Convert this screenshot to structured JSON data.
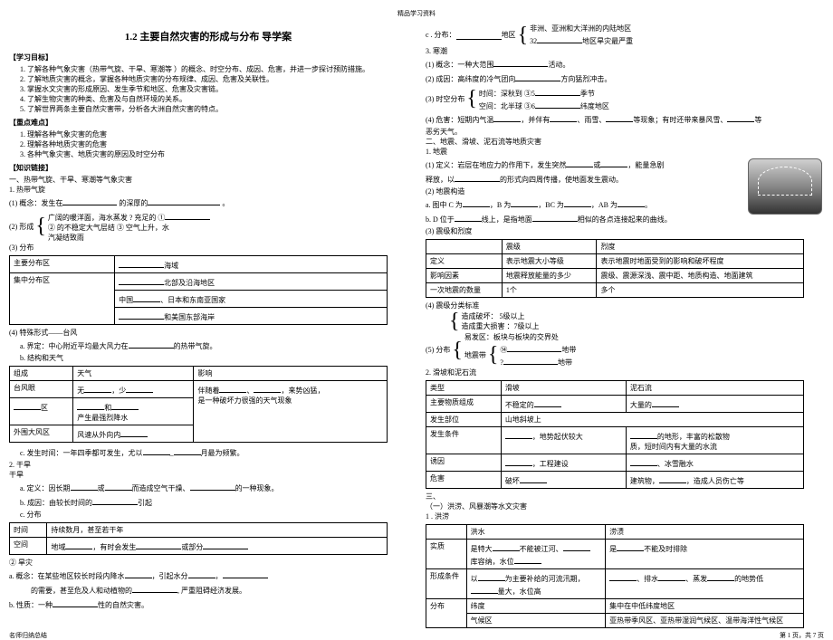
{
  "top_header": "精品学习资料",
  "title": "1.2  主要自然灾害的形成与分布    导学案",
  "left": {
    "goals_h": "【学习目标】",
    "goals": [
      "1.  了解各种气象灾害（热带气旋、干旱、寒潮等  ）的概念、时空分布、成因、危害，并进一步探讨预防措施。",
      "2.  了解地质灾害的概念，掌握各种地质灾害的分布规律、成因、危害及关联性。",
      "3.  掌握水文灾害的形成原因、发生季节和地区、危害及灾害链。",
      "4.  了解生物灾害的种类、危害及与自然环境的关系。",
      "5.  了解世界两条主要自然灾害带，分析各大洲自然灾害的特点。"
    ],
    "focus_h": "【重点难点】",
    "focus": [
      "1.  理解各种气象灾害的危害",
      "2.  理解各种地质灾害的危害",
      "3.  各种气象灾害、地质灾害的原因及时空分布"
    ],
    "link_h": "【知识链接】",
    "sec1_h": "一、热带气旋、干旱、寒潮等气象灾害",
    "sec1_1": "1.  热带气旋",
    "sec1_1_1_pre": "(1) 概念：发生在",
    "sec1_1_1_mid": "的深厚的",
    "sec1_1_1_end": "。",
    "form_pre": "(2) 形成",
    "form_a": "广阔的暖洋面，海水蒸发 ?  充足的 ①",
    "form_b": "② 的不稳定大气层结   ③ 空气上升，水",
    "form_c": "汽凝结致雨",
    "dist_pre": "(3) 分布",
    "t1_r1c1": "主要分布区",
    "t1_r1c2": "海域",
    "t1_r2c1": "",
    "t1_r2c2": "北部及沿海地区",
    "t1_r3c1": "集中分布区",
    "t1_r3c2_a": "中国",
    "t1_r3c2_b": "、日本和东南亚国家",
    "t1_r4c2": "和美国东部海岸",
    "sec1_4": "(4) 特殊形式——台风",
    "sec1_4a": "a.  界定：中心附近平均最大风力在",
    "sec1_4a2": "的热带气旋。",
    "sec1_4b": "b.  结构和天气",
    "t2_h1": "组成",
    "t2_h2": "天气",
    "t2_h3": "影响",
    "t2_r1c1": "台风眼",
    "t2_r1c2_a": "无",
    "t2_r1c2_b": "，少",
    "t2_r2c1": "",
    "t2_r2c2": "和",
    "t2_r2c3_a": "伴随着",
    "t2_r2c3_b": "、",
    "t2_r2c3_c": "，来势凶猛，",
    "t2_r3c1": "区",
    "t2_r3c2": "产生最强烈降水",
    "t2_r3c3": "是一种破坏力很强的天气现象",
    "t2_r4c1": "外围大风区",
    "t2_r4c2": "风速从外向内",
    "sec1_4c_a": "c.  发生时间：一年四季都可发生，尤以",
    "sec1_4c_b": "月最为频繁。",
    "sec1_2": "2.  干旱",
    "ganhan": "干旱",
    "ghdef_a": "a.  定义：因长期",
    "ghdef_b": "或",
    "ghdef_c": "而造成空气干燥、",
    "ghdef_d": "的一种现象。",
    "ghcause_a": "b.  成因：由较长时间的",
    "ghcause_b": "引起",
    "ghdist": "c.  分布",
    "t3_r1c1": "时间",
    "t3_r1c2_a": "持续数月，甚至若干年",
    "t3_r2c1": "空间",
    "t3_r2c2_a": "地域",
    "t3_r2c2_b": "，有时会发生",
    "t3_r2c2_c": "或部分",
    "hanzai": "② 旱灾",
    "hza_a": "a.  概念：在某些地区较长时段内降水",
    "hza_b": "，引起水分",
    "hza_c": "，",
    "hza_d": "的需要，甚至危及人和动植物的",
    "hza_e": ",  严重阻碍经济发展。",
    "hzb_a": "b.  性质：一种",
    "hzb_b": "性的自然灾害。"
  },
  "right": {
    "cdist_pre": "c . 分布：",
    "cdist_mid": "地区",
    "cdist_a": "非洲、亚洲和大洋洲的内陆地区",
    "cdist_b": "32",
    "cdist_c": "地区旱灾最严重",
    "hanchao": "3.  寒潮",
    "hc1_a": "(1) 概念：一种大范围",
    "hc1_b": "活动。",
    "hc2_a": "(2) 成因：高纬度的冷气团向",
    "hc2_b": "方向猛烈冲击。",
    "hc3": "(3) 时空分布",
    "hc3_a": "时间：深秋到 ③5",
    "hc3_b": "季节",
    "hc3_c": "空间：北半球 ③6",
    "hc3_d": "纬度地区",
    "hc4_a": "(4) 危害：短期内气温",
    "hc4_b": "，并伴有",
    "hc4_c": "、雨雪、",
    "hc4_d": "等现象；有时还带来暴风雪、",
    "hc4_e": "等",
    "hc4_f": "恶劣天气。",
    "sec2_h": "二、地震、滑坡、泥石流等地质灾害",
    "dizhen": "1.  地震",
    "dz1_a": "(1) 定义：岩层在地应力的作用下，发生突然",
    "dz1_b": "或",
    "dz1_c": "，能量急剧",
    "dz1_d": "释放，以",
    "dz1_e": "的形式向四周传播，使地面发生震动。",
    "dz2": "(2) 地震构造",
    "dz2a_a": "a.  图中  C 为",
    "dz2a_b": "，B 为",
    "dz2a_c": "，BC 为",
    "dz2a_d": "，AB 为",
    "dz2a_e": "。",
    "dz2b_a": "b.  D 位于",
    "dz2b_b": "线上，是指地面",
    "dz2b_c": "相似的各点连接起来的曲线。",
    "dz3": "(3) 震级和烈度",
    "t4_h1": "",
    "t4_h2": "震级",
    "t4_h3": "烈度",
    "t4_r1c1": "定义",
    "t4_r1c2": "表示地震大小等级",
    "t4_r1c3": "表示地震时地面受到的影响和破坏程度",
    "t4_r2c1": "影响因素",
    "t4_r2c2": "地震释放能量的多少",
    "t4_r2c3": "震级、震源深浅、震中距、地质构造、地面建筑",
    "t4_r3c1": "一次地震的数量",
    "t4_r3c2": "1个",
    "t4_r3c3": "多个",
    "dz4": "(4) 震级分类标准",
    "dz4a": "造成破坏：  5级以上",
    "dz4b": "造成重大损害   ：7级以上",
    "dz5": "(5) 分布",
    "dz5a": "易发区：板块与板块的交界处",
    "dz5b_a": "地震带",
    "dz5b_b": "⑭",
    "dz5b_c": "地带",
    "dz5b_d": "?",
    "dz5b_e": "地带",
    "huapo": "2.  滑坡和泥石流",
    "t5_h1": "类型",
    "t5_h2": "滑坡",
    "t5_h3": "泥石流",
    "t5_r1c1": "主要物质组成",
    "t5_r1c2": "不稳定的",
    "t5_r1c3": "大量的",
    "t5_r2c1": "发生部位",
    "t5_r2c2": "山地斜坡上",
    "t5_r3c1": "发生条件",
    "t5_r3c2": "，地势起伏较大",
    "t5_r3c3_a": "的地形，丰富的松散物",
    "t5_r3c3_b": "质，短时间内有大量的水流",
    "t5_r4c1": "诱因",
    "t5_r4c2": "，工程建设",
    "t5_r4c3": "、冰雪融水",
    "t5_r5c1": "危害",
    "t5_r5c2": "破坏",
    "t5_r5c3_a": "建筑物，",
    "t5_r5c3_b": "，造成人员伤亡等",
    "sec3_h": "三、",
    "sec3_1": "（一）洪涝、风暴潮等水文灾害",
    "hongle": "1 .  洪涝",
    "t6_h1": "",
    "t6_h2": "洪水",
    "t6_h3": "涝渍",
    "t6_r1c1": "实质",
    "t6_r1c2_a": "是特大",
    "t6_r1c2_b": "不能被江河、",
    "t6_r1c2_c": "库容纳，水位",
    "t6_r1c3_a": "是",
    "t6_r1c3_b": "不能及时排除",
    "t6_r2c1": "形成条件",
    "t6_r2c2_a": "以",
    "t6_r2c2_b": "为主要补给的河流汛期，",
    "t6_r2c2_c": "量大，水位高",
    "t6_r2c3_a": "、排水",
    "t6_r2c3_b": "、蒸发",
    "t6_r2c3_c": "的地势低",
    "t6_r3c1": "分布",
    "t6_r3c2a": "纬度",
    "t6_r3c2b": "集中在中低纬度地区",
    "t6_r4c1": "",
    "t6_r4c2a": "气候区",
    "t6_r4c2b": "亚热带季风区、亚热带湿润气候区、温带海洋性气候区"
  },
  "footer_left": "名师归纳总结",
  "footer_right": "第 1 页，共 7 页"
}
